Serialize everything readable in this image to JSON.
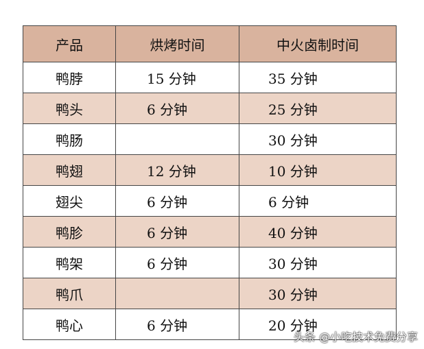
{
  "table": {
    "headers": [
      "产品",
      "烘烤时间",
      "中火卤制时间"
    ],
    "rows": [
      [
        "鸭脖",
        "15 分钟",
        "35 分钟"
      ],
      [
        "鸭头",
        "6 分钟",
        "25 分钟"
      ],
      [
        "鸭肠",
        "",
        "30 分钟"
      ],
      [
        "鸭翅",
        "12 分钟",
        "10 分钟"
      ],
      [
        "翅尖",
        "6 分钟",
        "6 分钟"
      ],
      [
        "鸭胗",
        "6 分钟",
        "40 分钟"
      ],
      [
        "鸭架",
        "6 分钟",
        "30 分钟"
      ],
      [
        "鸭爪",
        "",
        "30 分钟"
      ],
      [
        "鸭心",
        "6 分钟",
        "20 分钟"
      ]
    ],
    "header_color": "#d9b39e",
    "alt_row_color": "#ecd4c6"
  },
  "watermark": "头条 @小吃技术免费分享"
}
